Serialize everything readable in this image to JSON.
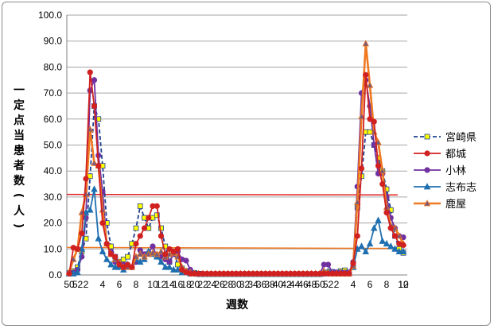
{
  "chart_data": {
    "type": "line",
    "xlabel": "週数",
    "ylabel": "一定点当患者数(人)",
    "ylim": [
      0,
      100
    ],
    "yticks": [
      "0.0",
      "10.0",
      "20.0",
      "30.0",
      "40.0",
      "50.0",
      "60.0",
      "70.0",
      "80.0",
      "90.0",
      "100.0"
    ],
    "x_tick_labels": [
      "50",
      "52",
      "2",
      "",
      "4",
      "",
      "6",
      "",
      "8",
      "",
      "10",
      "12",
      "14",
      "16",
      "18",
      "20",
      "22",
      "24",
      "26",
      "28",
      "30",
      "32",
      "34",
      "36",
      "38",
      "40",
      "42",
      "44",
      "46",
      "48",
      "50",
      "52",
      "2",
      "",
      "4",
      "",
      "6",
      "",
      "8",
      "",
      "10",
      "12"
    ],
    "grid": "horizontal",
    "legend_position": "right",
    "series": [
      {
        "name": "宮崎県",
        "color": "#1f3f8f",
        "marker_fill": "#ffff00",
        "marker": "square",
        "dashed": true,
        "values": [
          0.8,
          1.5,
          3.0,
          9.0,
          14.0,
          38.0,
          65.0,
          60.0,
          42.0,
          20.0,
          11.0,
          7.0,
          5.0,
          6.0,
          7.0,
          12.0,
          18.0,
          26.5,
          22.0,
          18.0,
          22.0,
          23.0,
          18.0,
          11.0,
          5.0,
          9.0,
          4.0,
          2.5,
          1.5,
          1.0,
          0.8,
          0.5,
          0.3,
          0.3,
          0.3,
          0.3,
          0.3,
          0.3,
          0.3,
          0.3,
          0.3,
          0.3,
          0.3,
          0.3,
          0.3,
          0.3,
          0.3,
          0.3,
          0.3,
          0.3,
          0.3,
          0.3,
          0.3,
          0.3,
          0.3,
          0.3,
          0.3,
          0.3,
          0.3,
          0.3,
          0.3,
          0.5,
          1.0,
          1.2,
          1.0,
          1.5,
          1.8,
          1.0,
          3.0,
          26.0,
          38.0,
          55.0,
          55.0,
          50.0,
          45.0,
          40.0,
          33.0,
          25.0,
          15.0,
          10.0,
          8.5
        ]
      },
      {
        "name": "都城",
        "color": "#d02020",
        "marker_fill": "#d02020",
        "marker": "circle",
        "dashed": false,
        "values": [
          0.5,
          10.5,
          10.0,
          16.0,
          37.0,
          78.0,
          65.0,
          42.0,
          20.0,
          12.0,
          8.0,
          7.0,
          4.0,
          3.0,
          4.0,
          3.0,
          12.0,
          15.0,
          18.0,
          22.0,
          26.5,
          26.5,
          15.0,
          8.0,
          10.0,
          9.0,
          10.0,
          2.0,
          1.0,
          0.5,
          0.5,
          0.5,
          0.5,
          0.5,
          0.5,
          0.5,
          0.5,
          0.5,
          0.5,
          0.5,
          0.5,
          0.5,
          0.5,
          0.5,
          0.5,
          0.5,
          0.5,
          0.5,
          0.5,
          0.5,
          0.5,
          0.5,
          0.5,
          0.5,
          0.5,
          0.5,
          0.5,
          0.5,
          0.5,
          0.5,
          0.5,
          0.5,
          0.5,
          0.5,
          0.5,
          0.5,
          0.5,
          0.5,
          4.5,
          15.0,
          41.0,
          77.0,
          60.0,
          59.0,
          42.0,
          35.0,
          24.0,
          18.0,
          15.0,
          12.0,
          11.5
        ]
      },
      {
        "name": "小林",
        "color": "#7030a0",
        "marker_fill": "#7030a0",
        "marker": "circle",
        "dashed": false,
        "values": [
          0.5,
          1.0,
          2.0,
          7.0,
          22.0,
          71.0,
          75.0,
          46.0,
          32.0,
          12.0,
          9.0,
          5.0,
          3.0,
          4.0,
          3.0,
          3.0,
          5.0,
          9.5,
          8.0,
          8.5,
          11.0,
          7.0,
          7.0,
          6.0,
          5.0,
          8.0,
          9.0,
          6.0,
          5.5,
          2.0,
          0.5,
          0.3,
          0.3,
          0.3,
          0.3,
          0.3,
          0.3,
          0.3,
          0.3,
          0.3,
          0.3,
          0.3,
          0.3,
          0.3,
          0.3,
          0.3,
          0.3,
          0.3,
          0.3,
          0.3,
          0.3,
          0.3,
          0.3,
          0.3,
          0.3,
          0.3,
          0.3,
          0.3,
          0.3,
          0.3,
          0.3,
          4.0,
          4.0,
          1.0,
          1.0,
          1.0,
          1.0,
          1.0,
          5.0,
          34.0,
          70.0,
          75.0,
          65.0,
          50.0,
          39.0,
          39.0,
          30.0,
          22.0,
          18.0,
          15.0,
          14.5
        ]
      },
      {
        "name": "志布志",
        "color": "#1f6fb0",
        "marker_fill": "#1f6fb0",
        "marker": "triangle",
        "dashed": false,
        "values": [
          0.5,
          0.5,
          1.0,
          10.0,
          24.0,
          25.0,
          33.0,
          14.0,
          9.0,
          6.0,
          4.0,
          3.0,
          3.0,
          2.0,
          4.0,
          3.0,
          6.0,
          5.0,
          6.0,
          9.0,
          8.0,
          7.0,
          5.0,
          3.0,
          3.0,
          2.0,
          2.0,
          1.0,
          1.0,
          0.5,
          0.5,
          0.3,
          0.3,
          0.3,
          0.3,
          0.3,
          0.3,
          0.3,
          0.3,
          0.3,
          0.3,
          0.3,
          0.3,
          0.3,
          0.3,
          0.3,
          0.3,
          0.3,
          0.3,
          0.3,
          0.3,
          0.3,
          0.3,
          0.3,
          0.3,
          0.3,
          0.3,
          0.3,
          0.3,
          0.3,
          0.3,
          1.0,
          1.5,
          0.5,
          0.5,
          0.5,
          0.5,
          0.5,
          3.0,
          10.0,
          11.0,
          9.0,
          12.0,
          18.0,
          21.0,
          13.0,
          12.0,
          11.0,
          10.0,
          9.0,
          9.0
        ]
      },
      {
        "name": "鹿屋",
        "color": "#f07820",
        "marker_fill": "#7a5a7a",
        "marker": "triangle",
        "dashed": false,
        "values": [
          1.0,
          6.0,
          10.0,
          24.0,
          31.0,
          56.0,
          43.0,
          42.0,
          25.0,
          12.0,
          8.0,
          6.0,
          5.0,
          3.0,
          3.0,
          3.0,
          7.0,
          8.0,
          7.0,
          8.0,
          8.5,
          8.0,
          9.0,
          7.0,
          8.0,
          8.5,
          7.0,
          3.0,
          1.5,
          1.0,
          0.5,
          0.5,
          0.5,
          0.5,
          0.5,
          0.5,
          0.5,
          0.5,
          0.5,
          0.5,
          0.5,
          0.5,
          0.5,
          0.5,
          0.5,
          0.5,
          0.5,
          0.5,
          0.5,
          0.5,
          0.5,
          0.5,
          0.5,
          0.5,
          0.5,
          0.5,
          0.5,
          0.5,
          0.5,
          0.5,
          0.5,
          1.5,
          1.0,
          0.5,
          0.5,
          0.5,
          0.5,
          0.5,
          3.5,
          28.0,
          61.0,
          89.0,
          73.0,
          55.0,
          51.0,
          40.0,
          26.0,
          19.0,
          18.0,
          15.0,
          12.0
        ]
      }
    ],
    "reference_lines": [
      {
        "color": "#e02020",
        "from": 31.0,
        "to": 30.8
      },
      {
        "color": "#f07820",
        "from": 10.6,
        "to": 10.2
      }
    ]
  }
}
